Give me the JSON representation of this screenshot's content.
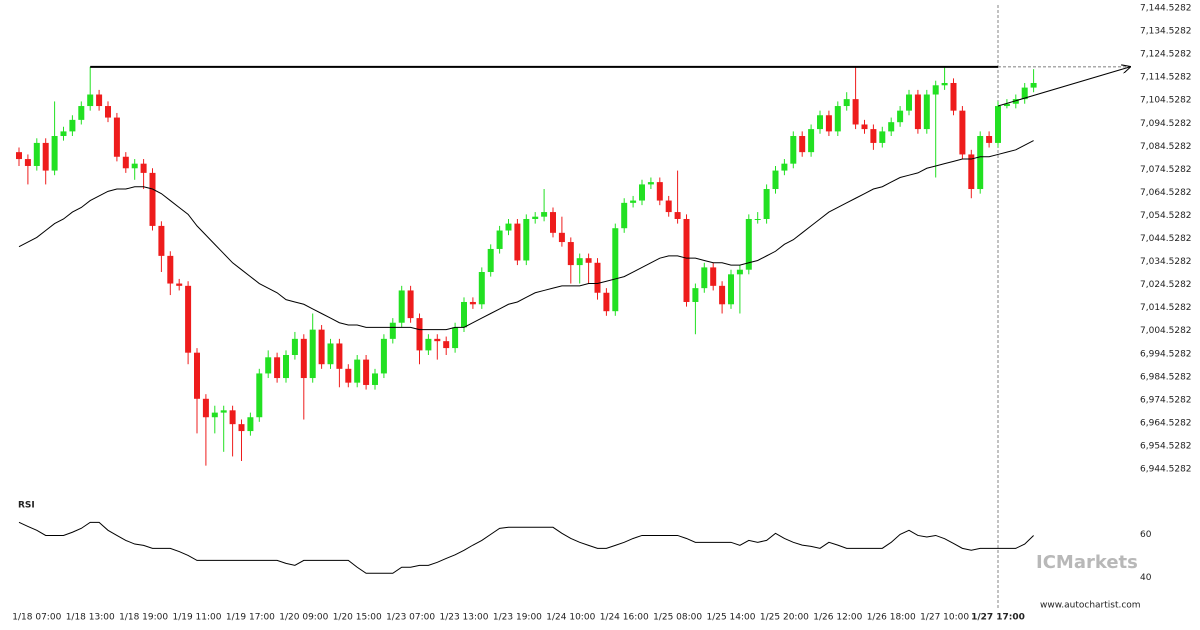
{
  "chart_data": {
    "type": "candlestick",
    "categories": [
      null,
      null,
      "1/18 07:00",
      null,
      null,
      null,
      null,
      null,
      "1/18 13:00",
      null,
      null,
      null,
      null,
      null,
      "1/18 19:00",
      null,
      null,
      null,
      null,
      null,
      "1/19 11:00",
      null,
      null,
      null,
      null,
      null,
      "1/19 17:00",
      null,
      null,
      null,
      null,
      null,
      "1/20 09:00",
      null,
      null,
      null,
      null,
      null,
      "1/20 15:00",
      null,
      null,
      null,
      null,
      null,
      "1/23 07:00",
      null,
      null,
      null,
      null,
      null,
      "1/23 13:00",
      null,
      null,
      null,
      null,
      null,
      "1/23 19:00",
      null,
      null,
      null,
      null,
      null,
      "1/24 10:00",
      null,
      null,
      null,
      null,
      null,
      "1/24 16:00",
      null,
      null,
      null,
      null,
      null,
      "1/25 08:00",
      null,
      null,
      null,
      null,
      null,
      "1/25 14:00",
      null,
      null,
      null,
      null,
      null,
      "1/25 20:00",
      null,
      null,
      null,
      null,
      null,
      "1/26 12:00",
      null,
      null,
      null,
      null,
      null,
      "1/26 18:00",
      null,
      null,
      null,
      null,
      null,
      "1/27 10:00",
      null,
      null,
      null,
      null,
      null,
      "1/27 17:00",
      null,
      null,
      null,
      null
    ],
    "open": [
      7082,
      7079,
      7076,
      7086,
      7074,
      7089,
      7091,
      7096,
      7102,
      7107,
      7102,
      7097,
      7080,
      7075,
      7077,
      7073,
      7050,
      7037,
      7025,
      7024,
      6995,
      6975,
      6967,
      6969,
      6970,
      6964,
      6961,
      6967,
      6986,
      6993,
      6984,
      6994,
      7001,
      6984,
      7005,
      6990,
      6999,
      6988,
      6982,
      6992,
      6981,
      6986,
      7001,
      7008,
      7022,
      7010,
      6996,
      7001,
      7000,
      6997,
      7006,
      7017,
      7016,
      7030,
      7040,
      7048,
      7051,
      7035,
      7053,
      7054,
      7056,
      7047,
      7043,
      7033,
      7036,
      7034,
      7021,
      7013,
      7049,
      7060,
      7061,
      7068,
      7069,
      7061,
      7056,
      7053,
      7017,
      7023,
      7032,
      7024,
      7016,
      7029,
      7031,
      7053,
      7053,
      7066,
      7074,
      7077,
      7089,
      7082,
      7092,
      7098,
      7091,
      7102,
      7105,
      7094,
      7092,
      7086,
      7091,
      7095,
      7100,
      7107,
      7092,
      7107,
      7111,
      7112,
      7100,
      7081,
      7066,
      7089,
      7086,
      7102,
      7103,
      7105,
      7110
    ],
    "high": [
      7084,
      7081,
      7088,
      7088,
      7104,
      7093,
      7098,
      7104,
      7119,
      7109,
      7104,
      7099,
      7082,
      7079,
      7079,
      7075,
      7052,
      7039,
      7027,
      7026,
      6997,
      6977,
      6972,
      6972,
      6972,
      6966,
      6969,
      6988,
      6996,
      6995,
      6996,
      7004,
      7003,
      7012,
      7007,
      7001,
      7001,
      6990,
      6994,
      6994,
      6988,
      7003,
      7010,
      7024,
      7024,
      7012,
      7003,
      7003,
      7002,
      7008,
      7019,
      7019,
      7032,
      7042,
      7050,
      7053,
      7053,
      7055,
      7056,
      7066,
      7058,
      7054,
      7045,
      7038,
      7038,
      7036,
      7023,
      7051,
      7062,
      7063,
      7070,
      7071,
      7071,
      7063,
      7074,
      7055,
      7025,
      7034,
      7034,
      7026,
      7031,
      7033,
      7055,
      7056,
      7068,
      7076,
      7079,
      7091,
      7091,
      7094,
      7100,
      7100,
      7104,
      7108,
      7119,
      7096,
      7094,
      7093,
      7097,
      7102,
      7109,
      7109,
      7109,
      7113,
      7119,
      7114,
      7102,
      7083,
      7091,
      7091,
      7104,
      7105,
      7107,
      7112,
      7118
    ],
    "low": [
      7076,
      7068,
      7074,
      7068,
      7072,
      7087,
      7089,
      7094,
      7100,
      7100,
      7095,
      7078,
      7073,
      7070,
      7066,
      7048,
      7030,
      7020,
      7022,
      6990,
      6960,
      6946,
      6960,
      6952,
      6950,
      6948,
      6959,
      6965,
      6984,
      6982,
      6982,
      6992,
      6966,
      6982,
      6988,
      6988,
      6980,
      6980,
      6980,
      6979,
      6979,
      6984,
      6999,
      7006,
      7008,
      6990,
      6994,
      6992,
      6994,
      6995,
      7004,
      7014,
      7014,
      7028,
      7038,
      7046,
      7033,
      7033,
      7051,
      7052,
      7045,
      7041,
      7025,
      7025,
      7025,
      7018,
      7011,
      7011,
      7047,
      7058,
      7059,
      7066,
      7059,
      7054,
      7051,
      7015,
      7003,
      7021,
      7022,
      7012,
      7014,
      7012,
      7029,
      7051,
      7051,
      7064,
      7072,
      7075,
      7080,
      7080,
      7090,
      7089,
      7089,
      7100,
      7092,
      7090,
      7083,
      7084,
      7089,
      7093,
      7098,
      7090,
      7090,
      7071,
      7109,
      7098,
      7079,
      7062,
      7064,
      7084,
      7084,
      7101,
      7101,
      7103,
      7108
    ],
    "close": [
      7079,
      7076,
      7086,
      7074,
      7089,
      7091,
      7096,
      7102,
      7107,
      7102,
      7097,
      7080,
      7075,
      7077,
      7073,
      7050,
      7037,
      7025,
      7024,
      6995,
      6975,
      6967,
      6969,
      6970,
      6964,
      6961,
      6967,
      6986,
      6993,
      6984,
      6994,
      7001,
      6984,
      7005,
      6990,
      6999,
      6988,
      6982,
      6992,
      6981,
      6986,
      7001,
      7008,
      7022,
      7010,
      6996,
      7001,
      7000,
      6997,
      7006,
      7017,
      7016,
      7030,
      7040,
      7048,
      7051,
      7035,
      7053,
      7054,
      7056,
      7047,
      7043,
      7033,
      7036,
      7034,
      7021,
      7013,
      7049,
      7060,
      7061,
      7068,
      7069,
      7061,
      7056,
      7053,
      7017,
      7023,
      7032,
      7024,
      7016,
      7029,
      7031,
      7053,
      7053,
      7066,
      7074,
      7077,
      7089,
      7082,
      7092,
      7098,
      7091,
      7102,
      7105,
      7094,
      7092,
      7086,
      7091,
      7095,
      7100,
      7107,
      7092,
      7107,
      7111,
      7112,
      7100,
      7081,
      7066,
      7089,
      7086,
      7102,
      7103,
      7105,
      7110,
      7112
    ],
    "colors": {
      "up": "#22e022",
      "down": "#ee1c1c"
    },
    "ylim": [
      6935,
      7148
    ],
    "yticks": [
      {
        "value": 7144.5282,
        "label": "7,144.5282"
      },
      {
        "value": 7134.5282,
        "label": "7,134.5282"
      },
      {
        "value": 7124.5282,
        "label": "7,124.5282"
      },
      {
        "value": 7114.5282,
        "label": "7,114.5282"
      },
      {
        "value": 7104.5282,
        "label": "7,104.5282"
      },
      {
        "value": 7094.5282,
        "label": "7,094.5282"
      },
      {
        "value": 7084.5282,
        "label": "7,084.5282"
      },
      {
        "value": 7074.5282,
        "label": "7,074.5282"
      },
      {
        "value": 7064.5282,
        "label": "7,064.5282"
      },
      {
        "value": 7054.5282,
        "label": "7,054.5282"
      },
      {
        "value": 7044.5282,
        "label": "7,044.5282"
      },
      {
        "value": 7034.5282,
        "label": "7,034.5282"
      },
      {
        "value": 7024.5282,
        "label": "7,024.5282"
      },
      {
        "value": 7014.5282,
        "label": "7,014.5282"
      },
      {
        "value": 7004.5282,
        "label": "7,004.5282"
      },
      {
        "value": 6994.5282,
        "label": "6,994.5282"
      },
      {
        "value": 6984.5282,
        "label": "6,984.5282"
      },
      {
        "value": 6974.5282,
        "label": "6,974.5282"
      },
      {
        "value": 6964.5282,
        "label": "6,964.5282"
      },
      {
        "value": 6954.5282,
        "label": "6,954.5282"
      },
      {
        "value": 6944.5282,
        "label": "6,944.5282"
      }
    ],
    "moving_average": {
      "color": "#000000",
      "values": [
        7041,
        7043,
        7045,
        7048,
        7051,
        7053,
        7056,
        7058,
        7061,
        7063,
        7065,
        7066,
        7066,
        7067,
        7067,
        7066,
        7064,
        7061,
        7058,
        7055,
        7050,
        7046,
        7042,
        7038,
        7034,
        7031,
        7028,
        7025,
        7023,
        7021,
        7018,
        7017,
        7016,
        7014,
        7012,
        7010,
        7008,
        7007,
        7007,
        7006,
        7006,
        7006,
        7006,
        7006,
        7006,
        7005,
        7005,
        7005,
        7005,
        7006,
        7006,
        7008,
        7010,
        7012,
        7014,
        7016,
        7017,
        7019,
        7021,
        7022,
        7023,
        7024,
        7024,
        7024,
        7025,
        7025,
        7026,
        7027,
        7028,
        7030,
        7032,
        7034,
        7036,
        7037,
        7037,
        7036,
        7036,
        7035,
        7034,
        7034,
        7033,
        7033,
        7034,
        7035,
        7037,
        7039,
        7042,
        7044,
        7047,
        7050,
        7053,
        7056,
        7058,
        7060,
        7062,
        7064,
        7066,
        7067,
        7069,
        7071,
        7072,
        7073,
        7075,
        7076,
        7077,
        7078,
        7079,
        7079,
        7080,
        7080,
        7081,
        7082,
        7083,
        7085,
        7087
      ]
    },
    "resistance": {
      "level": 7119,
      "start": 8
    },
    "forecast": {
      "values": [
        7102,
        7119
      ]
    },
    "rsi": {
      "title": "RSI",
      "ylim": [
        29,
        76
      ],
      "yticks": [
        60,
        40
      ],
      "color": "#000000",
      "values": [
        65.6,
        63.7,
        61.9,
        59.5,
        59.5,
        59.5,
        61,
        62.8,
        65.6,
        65.6,
        61.9,
        59.5,
        57.2,
        55.5,
        54.9,
        53.5,
        53.5,
        53.5,
        52,
        50.2,
        47.9,
        47.9,
        47.9,
        47.9,
        47.9,
        47.9,
        47.9,
        47.9,
        47.9,
        47.9,
        46.5,
        45.6,
        47.9,
        47.9,
        47.9,
        47.9,
        47.9,
        47.9,
        44.7,
        41.9,
        41.9,
        41.9,
        41.9,
        44.7,
        44.7,
        45.6,
        45.6,
        47,
        48.8,
        50.5,
        52.6,
        55,
        57.2,
        60,
        62.8,
        63.3,
        63.3,
        63.3,
        63.3,
        63.3,
        63.3,
        60.5,
        58.1,
        56.3,
        54.9,
        53.5,
        53.5,
        54.9,
        56.3,
        58.1,
        59.5,
        59.5,
        59.5,
        59.5,
        59.5,
        58.1,
        56.3,
        56.3,
        56.3,
        56.3,
        56.3,
        54.9,
        57.2,
        56.3,
        57.2,
        60.5,
        58.1,
        56.3,
        55,
        54.4,
        53.5,
        56.3,
        55,
        53.5,
        53.5,
        53.5,
        53.5,
        53.5,
        56.3,
        60,
        61.9,
        59.5,
        58.8,
        59.5,
        58,
        55.8,
        53.5,
        52.6,
        53.5,
        53.5,
        53.5,
        53.5,
        53.5,
        55.5,
        59.5
      ]
    },
    "branding": "ICMarkets",
    "source": "www.autochartist.com"
  }
}
